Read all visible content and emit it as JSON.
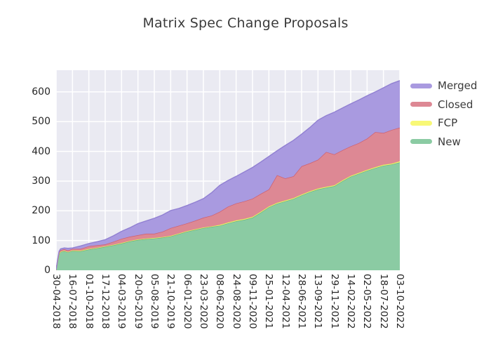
{
  "title": "Matrix Spec Change Proposals",
  "colors": {
    "figure_background": "#ffffff",
    "axes_background": "#eaeaf2",
    "gridline": "#ffffff",
    "title_text": "#3b3b3b",
    "tick_text": "#262626",
    "legend_text": "#3b3b3b"
  },
  "legend": [
    {
      "label": "Merged",
      "color": "#a99ae0"
    },
    {
      "label": "Closed",
      "color": "#dd8894"
    },
    {
      "label": "FCP",
      "color": "#f8f876"
    },
    {
      "label": "New",
      "color": "#8bcba3"
    }
  ],
  "chart_data": {
    "type": "area",
    "stacked": true,
    "title": "Matrix Spec Change Proposals",
    "xlabel": "",
    "ylabel": "",
    "grid": true,
    "legend_position": "outside upper right",
    "x_unit": "weeks since 30-04-2018 (weekly snapshots)",
    "xlim": [
      0,
      231
    ],
    "ylim": [
      0,
      673
    ],
    "y_ticks": [
      0,
      100,
      200,
      300,
      400,
      500,
      600
    ],
    "x_tick_weeks": [
      0,
      11,
      22,
      33,
      44,
      55,
      66,
      77,
      88,
      99,
      110,
      121,
      132,
      143,
      154,
      165,
      176,
      187,
      198,
      209,
      220,
      231
    ],
    "x_tick_labels": [
      "30-04-2018",
      "16-07-2018",
      "01-10-2018",
      "17-12-2018",
      "04-03-2019",
      "20-05-2019",
      "05-08-2019",
      "21-10-2019",
      "06-01-2020",
      "23-03-2020",
      "08-06-2020",
      "24-08-2020",
      "09-11-2020",
      "25-01-2021",
      "12-04-2021",
      "28-06-2021",
      "13-09-2021",
      "29-11-2021",
      "14-02-2022",
      "02-05-2022",
      "18-07-2022",
      "03-10-2022"
    ],
    "x": [
      0,
      1,
      2,
      3,
      5.5,
      8,
      11,
      16.5,
      22,
      27.5,
      33,
      38.5,
      44,
      49.5,
      55,
      60.5,
      66,
      71.5,
      77,
      82.5,
      88,
      93.5,
      99,
      104.5,
      110,
      115.5,
      121,
      126.5,
      132,
      137.5,
      143,
      148.5,
      154,
      159.5,
      165,
      170.5,
      176,
      181.5,
      187,
      192.5,
      198,
      203.5,
      209,
      214.5,
      220,
      225.5,
      231
    ],
    "stack_order_bottom_to_top": [
      "New",
      "FCP",
      "Closed",
      "Merged"
    ],
    "series": [
      {
        "name": "New",
        "fill": "#8bcba3",
        "edge": "#67b384",
        "values": [
          1,
          30,
          55,
          62,
          64,
          61,
          65,
          64,
          70,
          74,
          79,
          84,
          90,
          97,
          102,
          105,
          107,
          110,
          114,
          122,
          130,
          136,
          142,
          146,
          150,
          158,
          165,
          170,
          177,
          194,
          212,
          224,
          232,
          240,
          252,
          263,
          272,
          278,
          283,
          300,
          315,
          325,
          335,
          344,
          352,
          356,
          363
        ]
      },
      {
        "name": "FCP",
        "fill": "#f8f876",
        "edge": "#e4e45e",
        "values": [
          0,
          1,
          1,
          1,
          2,
          1,
          2,
          2,
          2,
          2,
          2,
          2,
          2,
          2,
          2,
          2,
          2,
          2,
          2,
          2,
          2,
          2,
          2,
          2,
          3,
          3,
          3,
          3,
          3,
          3,
          3,
          3,
          3,
          3,
          3,
          3,
          3,
          3,
          3,
          3,
          3,
          3,
          3,
          3,
          3,
          3,
          4
        ]
      },
      {
        "name": "Closed",
        "fill": "#dd8894",
        "edge": "#ce5f6f",
        "values": [
          0,
          2,
          4,
          5,
          5,
          5,
          5,
          6,
          9,
          8,
          6,
          10,
          14,
          14,
          14,
          16,
          14,
          18,
          26,
          26,
          26,
          29,
          33,
          36,
          44,
          53,
          57,
          59,
          61,
          60,
          57,
          93,
          74,
          73,
          95,
          94,
          97,
          117,
          104,
          101,
          99,
          100,
          105,
          118,
          107,
          113,
          113
        ]
      },
      {
        "name": "Merged",
        "fill": "#a99ae0",
        "edge": "#9180d2",
        "values": [
          1,
          3,
          4,
          4,
          4,
          7,
          3,
          10,
          9,
          12,
          16,
          20,
          25,
          30,
          39,
          43,
          52,
          56,
          59,
          58,
          60,
          62,
          64,
          77,
          89,
          88,
          91,
          99,
          105,
          107,
          111,
          82,
          111,
          121,
          108,
          120,
          133,
          122,
          142,
          142,
          143,
          145,
          144,
          135,
          152,
          156,
          158
        ]
      }
    ]
  }
}
